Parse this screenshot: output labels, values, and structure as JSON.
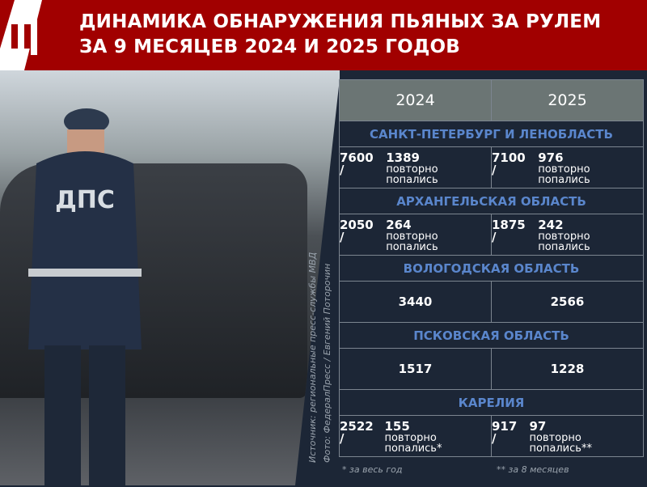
{
  "header": {
    "title_line1": "ДИНАМИКА ОБНАРУЖЕНИЯ ПЬЯНЫХ ЗА РУЛЕМ",
    "title_line2": "ЗА 9 МЕСЯЦЕВ 2024 И 2025 ГОДОВ",
    "brand_color": "#a10000",
    "logo": "ФедералПресс"
  },
  "photo": {
    "badge": "ДПС"
  },
  "credits": {
    "source": "Источник: региональные пресс-службы МВД",
    "photo": "Фото: ФедералПресс / Евгений Поторочин"
  },
  "table": {
    "years": [
      "2024",
      "2025"
    ],
    "regions": [
      {
        "name": "САНКТ-ПЕТЕРБУРГ И ЛЕНОБЛАСТЬ",
        "v2024": {
          "total": "7600 /",
          "repeat": "1389",
          "label": "повторно попались"
        },
        "v2025": {
          "total": "7100 /",
          "repeat": "976",
          "label": "повторно попались"
        }
      },
      {
        "name": "АРХАНГЕЛЬСКАЯ ОБЛАСТЬ",
        "v2024": {
          "total": "2050 /",
          "repeat": "264",
          "label": "повторно попались"
        },
        "v2025": {
          "total": "1875 /",
          "repeat": "242",
          "label": "повторно попались"
        }
      },
      {
        "name": "ВОЛОГОДСКАЯ ОБЛАСТЬ",
        "v2024": {
          "total": "3440"
        },
        "v2025": {
          "total": "2566"
        }
      },
      {
        "name": "ПСКОВСКАЯ ОБЛАСТЬ",
        "v2024": {
          "total": "1517"
        },
        "v2025": {
          "total": "1228"
        }
      },
      {
        "name": "КАРЕЛИЯ",
        "v2024": {
          "total": "2522 /",
          "repeat": "155",
          "label": "повторно попались*"
        },
        "v2025": {
          "total": "917 /",
          "repeat": "97",
          "label": "повторно попались**"
        }
      }
    ]
  },
  "notes": [
    "* за весь год",
    "** за 8 месяцев"
  ],
  "colors": {
    "background": "#1c2636",
    "header_row": "#6b7574",
    "region_text": "#5a86cc"
  }
}
